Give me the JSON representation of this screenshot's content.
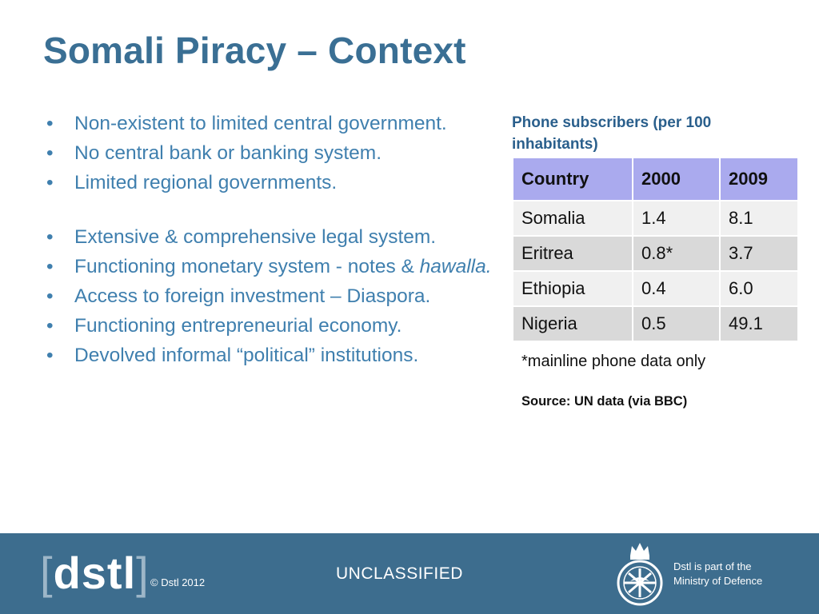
{
  "title": "Somali Piracy – Context",
  "bullets": [
    {
      "text": "Non-existent to limited central government."
    },
    {
      "text": "No central bank or banking system."
    },
    {
      "text": "Limited regional governments."
    },
    {
      "text": "Extensive & comprehensive legal system."
    },
    {
      "text": "Functioning monetary system - notes & ",
      "italic": "hawalla."
    },
    {
      "text": "Access to foreign investment – Diaspora."
    },
    {
      "text": "Functioning entrepreneurial economy."
    },
    {
      "text": "Devolved informal “political” institutions."
    }
  ],
  "table": {
    "title": "Phone subscribers (per 100 inhabitants)",
    "headers": [
      "Country",
      "2000",
      "2009"
    ],
    "rows": [
      [
        "Somalia",
        "1.4",
        "8.1"
      ],
      [
        "Eritrea",
        "0.8*",
        "3.7"
      ],
      [
        "Ethiopia",
        "0.4",
        "6.0"
      ],
      [
        "Nigeria",
        "0.5",
        "49.1"
      ]
    ],
    "footnote": "*mainline phone data only",
    "source": "Source: UN data (via BBC)"
  },
  "footer": {
    "logo_text": "dstl",
    "copyright": "© Dstl 2012",
    "classification": "UNCLASSIFIED",
    "mod_line1": "Dstl is part of the",
    "mod_line2": "Ministry of Defence"
  },
  "colors": {
    "title": "#3a6f94",
    "bullet_text": "#3f7fae",
    "table_header": "#aaaaee",
    "footer_bg": "#3d6d8e"
  }
}
